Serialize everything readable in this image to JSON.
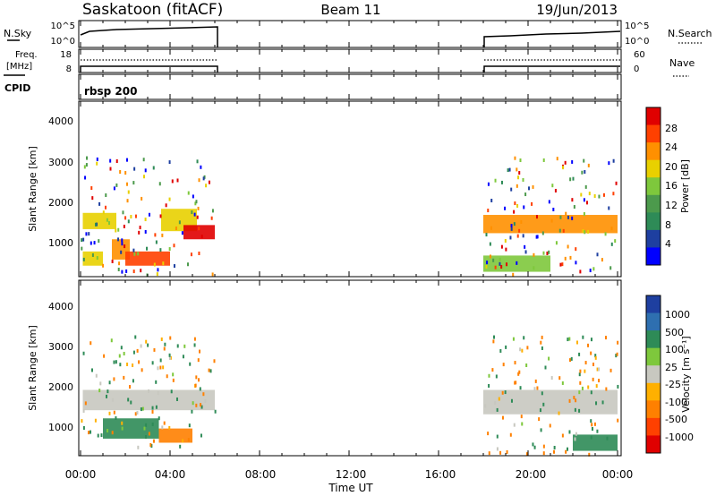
{
  "header": {
    "radar": "Saskatoon (fitACF)",
    "beam": "Beam 11",
    "date": "19/Jun/2013"
  },
  "nsky_panel": {
    "left_label": "N.Sky",
    "left_ticks": [
      "10^5",
      "10^0"
    ],
    "right_label": "N.Search",
    "right_ticks": [
      "10^5",
      "10^0"
    ]
  },
  "freq_panel": {
    "left_label_1": "Freq.",
    "left_label_2": "[MHz]",
    "left_ticks": [
      "18",
      "8"
    ],
    "right_label": "Nave",
    "right_ticks": [
      "60",
      "0"
    ]
  },
  "cpid_panel": {
    "left_label": "CPID",
    "program": "rbsp 200"
  },
  "power_panel": {
    "ylabel": "Slant Range [km]",
    "yticks": [
      "4000",
      "3000",
      "2000",
      "1000"
    ],
    "colorbar_label": "Power [dB]",
    "colorbar_ticks": [
      "28",
      "24",
      "20",
      "16",
      "12",
      "8",
      "4"
    ]
  },
  "velocity_panel": {
    "ylabel": "Slant Range [km]",
    "yticks": [
      "4000",
      "3000",
      "2000",
      "1000"
    ],
    "colorbar_label": "Velocity [m s⁻¹]",
    "colorbar_ticks": [
      "1000",
      "500",
      "100",
      "25",
      "-25",
      "-100",
      "-500",
      "-1000"
    ]
  },
  "xaxis": {
    "label": "Time UT",
    "ticks": [
      "00:00",
      "04:00",
      "08:00",
      "12:00",
      "16:00",
      "20:00",
      "00:00"
    ]
  },
  "colors": {
    "power_scale": [
      "#0000ff",
      "#1e3fa0",
      "#2e8b57",
      "#4c9a4c",
      "#7ec83c",
      "#e8d000",
      "#ff9000",
      "#ff4000",
      "#e00000"
    ],
    "velocity_scale": [
      "#1e3fa0",
      "#2e6fb0",
      "#2e8b57",
      "#7ec83c",
      "#c8c8c0",
      "#ffb000",
      "#ff8000",
      "#ff4000",
      "#e00000"
    ]
  },
  "chart_data": [
    {
      "type": "heatmap",
      "title": "Power",
      "xlabel": "Time UT",
      "ylabel": "Slant Range [km]",
      "xlim": [
        "00:00",
        "24:00"
      ],
      "ylim": [
        180,
        4500
      ],
      "colorbar": {
        "label": "Power [dB]",
        "range": [
          0,
          30
        ],
        "ticks": [
          28,
          24,
          20,
          16,
          12,
          8,
          4
        ]
      },
      "data_intervals_ut": [
        [
          0.0,
          6.0
        ],
        [
          18.0,
          24.0
        ]
      ],
      "blocks": [
        {
          "t0": 0.1,
          "t1": 1.0,
          "r0": 450,
          "r1": 800,
          "value": 18
        },
        {
          "t0": 0.1,
          "t1": 1.6,
          "r0": 1350,
          "r1": 1750,
          "value": 17
        },
        {
          "t0": 1.4,
          "t1": 2.2,
          "r0": 600,
          "r1": 1100,
          "value": 20
        },
        {
          "t0": 2.0,
          "t1": 4.0,
          "r0": 450,
          "r1": 800,
          "value": 25
        },
        {
          "t0": 3.6,
          "t1": 5.2,
          "r0": 1300,
          "r1": 1850,
          "value": 18
        },
        {
          "t0": 4.6,
          "t1": 6.0,
          "r0": 1100,
          "r1": 1450,
          "value": 27
        },
        {
          "t0": 18.0,
          "t1": 24.0,
          "r0": 1250,
          "r1": 1700,
          "value": 22
        },
        {
          "t0": 18.0,
          "t1": 21.0,
          "r0": 300,
          "r1": 700,
          "value": 14
        }
      ]
    },
    {
      "type": "heatmap",
      "title": "Velocity",
      "xlabel": "Time UT",
      "ylabel": "Slant Range [km]",
      "xlim": [
        "00:00",
        "24:00"
      ],
      "ylim": [
        180,
        4500
      ],
      "colorbar": {
        "label": "Velocity [m s⁻¹]",
        "ticks": [
          1000,
          500,
          100,
          25,
          -25,
          -100,
          -500,
          -1000
        ]
      },
      "data_intervals_ut": [
        [
          0.0,
          6.0
        ],
        [
          18.0,
          24.0
        ]
      ],
      "blocks": [
        {
          "t0": 0.1,
          "t1": 6.0,
          "r0": 1300,
          "r1": 1800,
          "value": 0
        },
        {
          "t0": 1.0,
          "t1": 3.5,
          "r0": 600,
          "r1": 1100,
          "value": 150
        },
        {
          "t0": 3.5,
          "t1": 5.0,
          "r0": 500,
          "r1": 850,
          "value": -100
        },
        {
          "t0": 18.0,
          "t1": 24.0,
          "r0": 1200,
          "r1": 1800,
          "value": 0
        },
        {
          "t0": 22.0,
          "t1": 24.0,
          "r0": 300,
          "r1": 700,
          "value": 80
        }
      ]
    }
  ]
}
